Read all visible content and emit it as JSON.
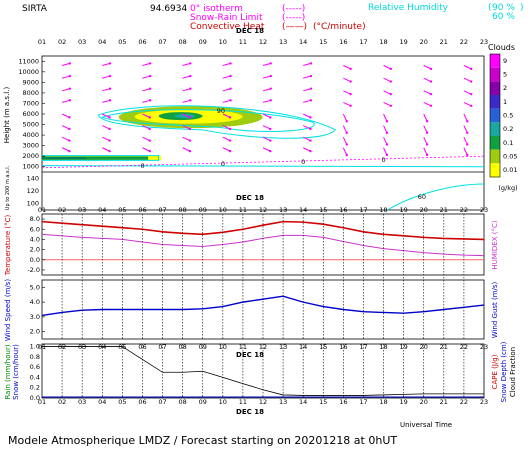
{
  "header": {
    "station": "SIRTA",
    "coords": "94.6934",
    "isotherm_label": "0° isotherm",
    "isotherm_key": "(-----)",
    "snowrain_label": "Snow-Rain Limit",
    "snowrain_key": "(-----)",
    "convective_label": "Convective Heat",
    "convective_key": "(——)",
    "convective_unit": "(°C/minute)",
    "rh_label": "Relative Humidity",
    "rh_90": "90 %",
    "rh_60": "60 %",
    "rh_paren_open": "(",
    "rh_paren_close": ")"
  },
  "date_label": "DEC 18",
  "hours": [
    "01",
    "02",
    "03",
    "04",
    "05",
    "06",
    "07",
    "08",
    "09",
    "10",
    "11",
    "12",
    "13",
    "14",
    "15",
    "16",
    "17",
    "18",
    "19",
    "20",
    "21",
    "22",
    "23"
  ],
  "clouds": {
    "title": "Clouds",
    "unit": "(g/kg)",
    "levels": [
      "9",
      "5",
      "2",
      "1",
      "0.5",
      "0.2",
      "0.1",
      "0.05",
      "0.01"
    ],
    "colors": [
      "#ff00ff",
      "#cc00cc",
      "#8800aa",
      "#3a2ac8",
      "#2860d8",
      "#18a8a0",
      "#10a040",
      "#a0cc10",
      "#ffff00"
    ]
  },
  "footer": {
    "forecast_text": "Modele Atmospherique LMDZ / Forecast starting on 20201218 at 0hUT",
    "time_label": "Universal Time"
  },
  "colors": {
    "magenta": "#ff00ff",
    "cyan": "#00e0e0",
    "red": "#d00000",
    "blue": "#0000cc",
    "dark_red": "#aa0000",
    "dark_green": "#008800"
  },
  "chart_data": [
    {
      "type": "heatmap",
      "ylabel": "Height (m a.s.l.)",
      "ylabel_lower": "Up to 200 m a.s.l.",
      "yticks_upper": [
        1000,
        2000,
        3000,
        4000,
        5000,
        6000,
        7000,
        8000,
        9000,
        10000,
        11000
      ],
      "yticks_lower": [
        100,
        120,
        140
      ],
      "isotherm_value_label": "0",
      "rh_value_label": "90",
      "rh_value_label_low": "60",
      "freezing_level_m": [
        900,
        950,
        1000,
        1050,
        1100,
        1150,
        1200,
        1250,
        1300,
        1350,
        1400,
        1450,
        1500,
        1550,
        1600,
        1650,
        1700,
        1750,
        1800,
        1850,
        1900,
        1950,
        2000
      ],
      "wind_direction": "arrows"
    },
    {
      "type": "line",
      "ylabel": "Temperature (°C)",
      "ylabel_right": "HUMIDEX (°C)",
      "yticks": [
        "-2.0",
        "0.0",
        "2.0",
        "4.0",
        "6.0",
        "8.0"
      ],
      "ylim": [
        -3,
        9
      ],
      "x": [
        "01",
        "02",
        "03",
        "04",
        "05",
        "06",
        "07",
        "08",
        "09",
        "10",
        "11",
        "12",
        "13",
        "14",
        "15",
        "16",
        "17",
        "18",
        "19",
        "20",
        "21",
        "22",
        "23"
      ],
      "series": [
        {
          "values": [
            7.5,
            7.2,
            6.9,
            6.6,
            6.3,
            6.0,
            5.5,
            5.2,
            5.0,
            5.4,
            6.0,
            6.8,
            7.5,
            7.4,
            7.0,
            6.3,
            5.5,
            5.0,
            4.7,
            4.4,
            4.2,
            4.1,
            4.0
          ]
        },
        {
          "values": [
            5.0,
            4.7,
            4.4,
            4.2,
            4.0,
            3.5,
            3.0,
            2.8,
            2.6,
            3.0,
            3.5,
            4.2,
            4.8,
            4.8,
            4.4,
            3.6,
            2.8,
            2.2,
            1.8,
            1.4,
            1.1,
            0.9,
            0.8
          ]
        },
        {
          "values": [
            0,
            0,
            0,
            0,
            0,
            0,
            0,
            0,
            0,
            0,
            0,
            0,
            0,
            0,
            0,
            0,
            0,
            0,
            0,
            0,
            0,
            0,
            0
          ]
        }
      ]
    },
    {
      "type": "line",
      "ylabel": "Wind Speed (m/s)",
      "ylabel_right": "Wind Gust (m/s)",
      "yticks": [
        "2.0",
        "3.0",
        "4.0",
        "5.0"
      ],
      "ylim": [
        1.5,
        5.5
      ],
      "x": [
        "01",
        "02",
        "03",
        "04",
        "05",
        "06",
        "07",
        "08",
        "09",
        "10",
        "11",
        "12",
        "13",
        "14",
        "15",
        "16",
        "17",
        "18",
        "19",
        "20",
        "21",
        "22",
        "23"
      ],
      "series": [
        {
          "values": [
            3.1,
            3.3,
            3.45,
            3.5,
            3.5,
            3.5,
            3.5,
            3.5,
            3.55,
            3.7,
            4.0,
            4.2,
            4.4,
            4.0,
            3.7,
            3.5,
            3.35,
            3.3,
            3.25,
            3.35,
            3.5,
            3.65,
            3.8
          ]
        }
      ]
    },
    {
      "type": "line",
      "ylabel": "Rain (mm/hour)",
      "ylabel_2": "Snow (cm/hour)",
      "ylabel_right": "CAPE (J/g)",
      "ylabel_right_2": "Snow Depth (cm)",
      "ylabel_right_3": "Cloud Fraction",
      "yticks": [
        "0.0",
        "0.2",
        "0.4",
        "0.6",
        "0.8",
        "1.0"
      ],
      "ylim": [
        0,
        1.05
      ],
      "x": [
        "01",
        "02",
        "03",
        "04",
        "05",
        "06",
        "07",
        "08",
        "09",
        "10",
        "11",
        "12",
        "13",
        "14",
        "15",
        "16",
        "17",
        "18",
        "19",
        "20",
        "21",
        "22",
        "23"
      ],
      "series": [
        {
          "values": [
            1.0,
            1.0,
            1.0,
            1.0,
            1.0,
            0.75,
            0.5,
            0.5,
            0.52,
            0.4,
            0.28,
            0.16,
            0.06,
            0.05,
            0.05,
            0.05,
            0.05,
            0.06,
            0.07,
            0.08,
            0.08,
            0.08,
            0.08
          ]
        },
        {
          "values": [
            0.02,
            0.02,
            0.02,
            0.02,
            0.02,
            0.02,
            0.02,
            0.02,
            0.02,
            0.02,
            0.02,
            0.02,
            0.02,
            0.02,
            0.02,
            0.02,
            0.02,
            0.02,
            0.02,
            0.02,
            0.02,
            0.02,
            0.02
          ]
        }
      ]
    }
  ]
}
